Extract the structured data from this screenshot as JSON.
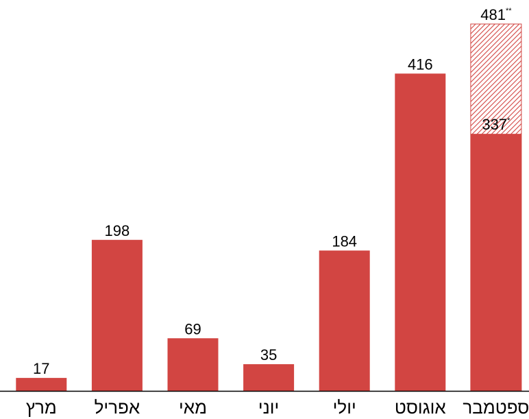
{
  "chart_data": {
    "type": "bar",
    "categories": [
      "מרץ",
      "אפריל",
      "מאי",
      "יוני",
      "יולי",
      "אוגוסט",
      "ספטמבר"
    ],
    "values": [
      17,
      198,
      69,
      35,
      184,
      416,
      337
    ],
    "value_labels": [
      "17",
      "198",
      "69",
      "35",
      "184",
      "416",
      "337"
    ],
    "value_label_marks": [
      "",
      "",
      "",
      "",
      "",
      "",
      "*"
    ],
    "projection": {
      "category": "ספטמבר",
      "total": 481,
      "label": "481",
      "mark": "**",
      "fill": "hatched"
    },
    "ylim": [
      0,
      500
    ],
    "grid": false,
    "legend": "none",
    "colors": {
      "bar": "#d24542",
      "hatch": "#d24542",
      "axis": "#000000"
    }
  }
}
